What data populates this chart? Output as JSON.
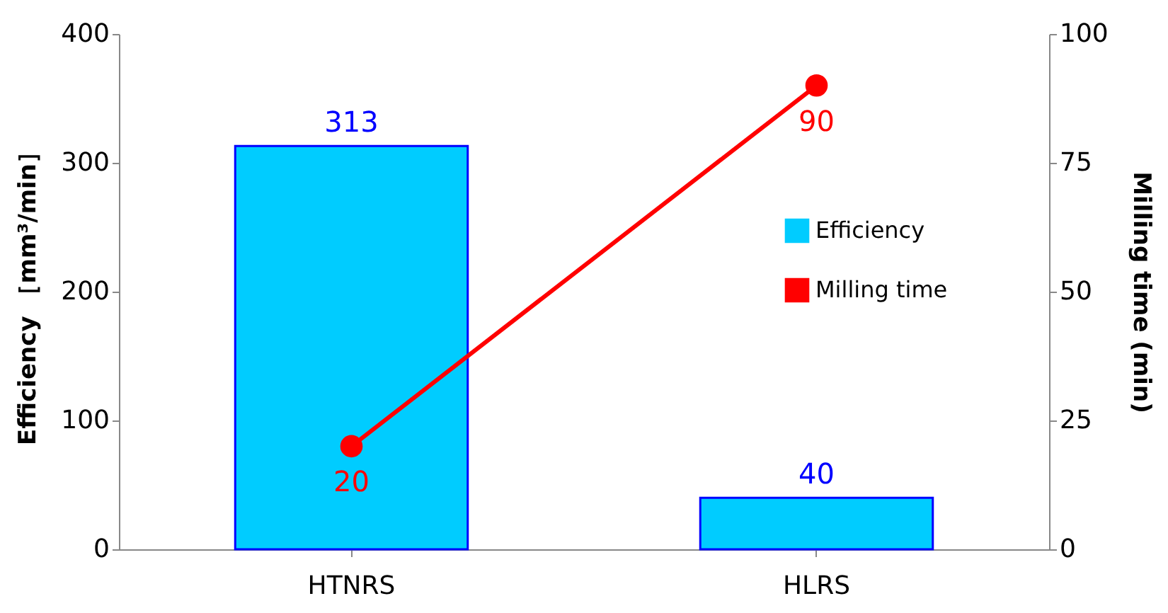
{
  "chart_data": {
    "type": "bar",
    "categories": [
      "HTNRS",
      "HLRS"
    ],
    "ylabel": "Efficiency ［mm³/min］",
    "y2label": "Milling time (min)",
    "ylim": [
      0,
      400
    ],
    "yticks": [
      0,
      100,
      200,
      300,
      400
    ],
    "y2lim": [
      0,
      100
    ],
    "y2ticks": [
      0,
      25,
      50,
      75,
      100
    ],
    "legend": "right",
    "grid": false,
    "data_labels": true,
    "marker": "circle",
    "series": [
      {
        "name": "Efficiency",
        "color": "#00ccff",
        "values": [
          313,
          40
        ]
      },
      {
        "name": "Milling time",
        "type": "line",
        "axis": "y2",
        "color": "#ff0000",
        "values": [
          20,
          90
        ]
      }
    ]
  }
}
